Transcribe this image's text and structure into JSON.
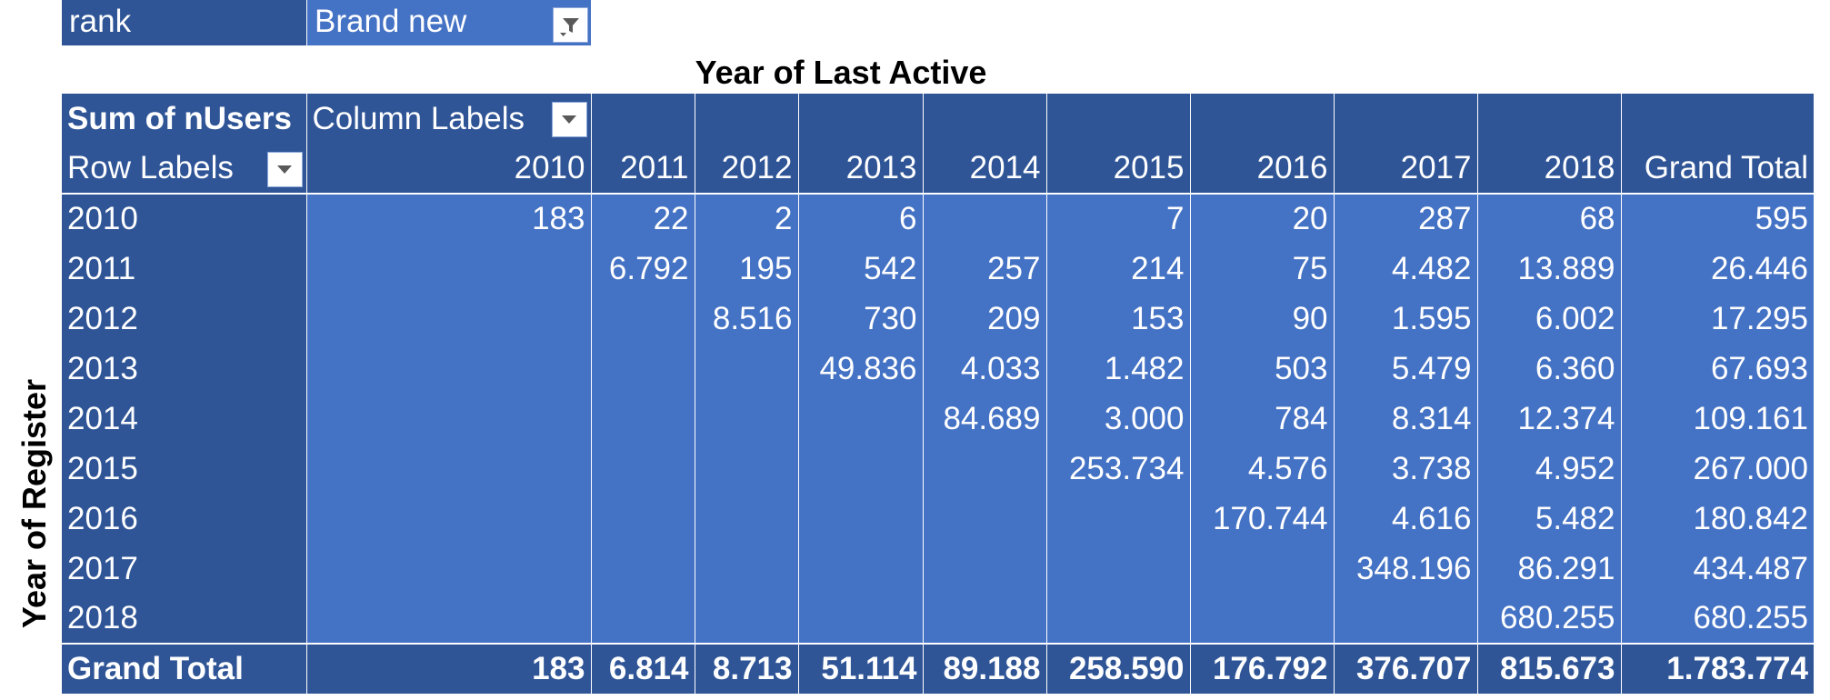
{
  "filter": {
    "field": "rank",
    "value": "Brand new"
  },
  "column_axis_title": "Year of Last Active",
  "row_axis_title": "Year of Register",
  "pivot": {
    "value_field": "Sum of nUsers",
    "column_labels_caption": "Column Labels",
    "row_labels_caption": "Row Labels",
    "columns": [
      "2010",
      "2011",
      "2012",
      "2013",
      "2014",
      "2015",
      "2016",
      "2017",
      "2018",
      "Grand Total"
    ],
    "rows": [
      {
        "label": "2010",
        "cells": [
          "183",
          "22",
          "2",
          "6",
          "",
          "7",
          "20",
          "287",
          "68",
          "595"
        ]
      },
      {
        "label": "2011",
        "cells": [
          "",
          "6.792",
          "195",
          "542",
          "257",
          "214",
          "75",
          "4.482",
          "13.889",
          "26.446"
        ]
      },
      {
        "label": "2012",
        "cells": [
          "",
          "",
          "8.516",
          "730",
          "209",
          "153",
          "90",
          "1.595",
          "6.002",
          "17.295"
        ]
      },
      {
        "label": "2013",
        "cells": [
          "",
          "",
          "",
          "49.836",
          "4.033",
          "1.482",
          "503",
          "5.479",
          "6.360",
          "67.693"
        ]
      },
      {
        "label": "2014",
        "cells": [
          "",
          "",
          "",
          "",
          "84.689",
          "3.000",
          "784",
          "8.314",
          "12.374",
          "109.161"
        ]
      },
      {
        "label": "2015",
        "cells": [
          "",
          "",
          "",
          "",
          "",
          "253.734",
          "4.576",
          "3.738",
          "4.952",
          "267.000"
        ]
      },
      {
        "label": "2016",
        "cells": [
          "",
          "",
          "",
          "",
          "",
          "",
          "170.744",
          "4.616",
          "5.482",
          "180.842"
        ]
      },
      {
        "label": "2017",
        "cells": [
          "",
          "",
          "",
          "",
          "",
          "",
          "",
          "348.196",
          "86.291",
          "434.487"
        ]
      },
      {
        "label": "2018",
        "cells": [
          "",
          "",
          "",
          "",
          "",
          "",
          "",
          "",
          "680.255",
          "680.255"
        ]
      }
    ],
    "grand_total": {
      "label": "Grand Total",
      "cells": [
        "183",
        "6.814",
        "8.713",
        "51.114",
        "89.188",
        "258.590",
        "176.792",
        "376.707",
        "815.673",
        "1.783.774"
      ]
    }
  },
  "colors": {
    "header_dark": "#2f5597",
    "body_blue": "#4472c4",
    "grid_line": "#ffffff"
  },
  "icons": {
    "filter_applied": "funnel-filter-icon",
    "dropdown": "chevron-down-icon"
  }
}
